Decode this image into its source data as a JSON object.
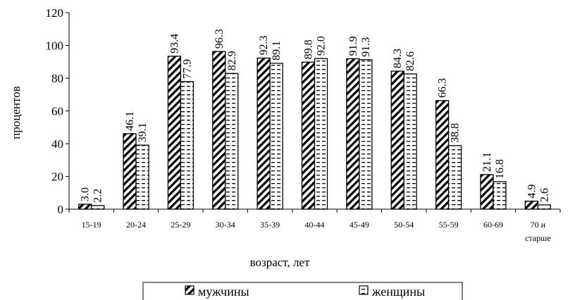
{
  "chart_data": {
    "type": "bar",
    "categories": [
      "15-19",
      "20-24",
      "25-29",
      "30-34",
      "35-39",
      "40-44",
      "45-49",
      "50-54",
      "55-59",
      "60-69",
      "70 и старше"
    ],
    "series": [
      {
        "name": "мужчины",
        "values": [
          3.0,
          46.1,
          93.4,
          96.3,
          92.3,
          89.8,
          91.9,
          84.3,
          66.3,
          21.1,
          4.9
        ],
        "pattern": "diagonal-hatch"
      },
      {
        "name": "женщины",
        "values": [
          2.2,
          39.1,
          77.9,
          82.9,
          89.1,
          92.0,
          91.3,
          82.6,
          38.8,
          16.8,
          2.6
        ],
        "pattern": "dashed-horizontal"
      }
    ],
    "value_labels": [
      [
        "3.0",
        "46.1",
        "93.4",
        "96.3",
        "92.3",
        "89.8",
        "91.9",
        "84.3",
        "66.3",
        "21.1",
        "4.9"
      ],
      [
        "2.2",
        "39.1",
        "77.9",
        "82.9",
        "89.1",
        "92.0",
        "91.3",
        "82.6",
        "38.8",
        "16.8",
        "2.6"
      ]
    ],
    "xlabel": "возраст, лет",
    "ylabel": "процентов",
    "ylim": [
      0,
      120
    ],
    "yticks": [
      0,
      20,
      40,
      60,
      80,
      100,
      120
    ],
    "grid": false,
    "legend": "bottom-center"
  }
}
